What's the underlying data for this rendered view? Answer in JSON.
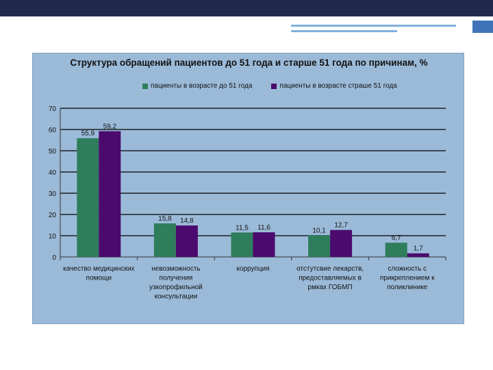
{
  "chart_data": {
    "type": "bar",
    "title": "Структура обращений пациентов до 51 года и старше 51 года по причинам, %",
    "categories": [
      [
        "качество медицинских",
        "помощи"
      ],
      [
        "невозможность",
        "получения",
        "узкопрофильной",
        "консультации"
      ],
      [
        "коррупция"
      ],
      [
        "отстутсвие лекарств,",
        "предоставляемых в",
        "рмках ГОБМП"
      ],
      [
        "сложность с",
        "прикреплением к",
        "поликлинике"
      ]
    ],
    "series": [
      {
        "name": "пациенты в возрасте до 51 года",
        "color": "#2e7d5b",
        "values": [
          55.9,
          15.8,
          11.5,
          10.1,
          6.7
        ],
        "labels": [
          "55,9",
          "15,8",
          "11,5",
          "10,1",
          "6,7"
        ]
      },
      {
        "name": "пациенты в возрасте страше 51 года",
        "color": "#4b0a6e",
        "values": [
          59.2,
          14.8,
          11.6,
          12.7,
          1.7
        ],
        "labels": [
          "59,2",
          "14,8",
          "11,6",
          "12,7",
          "1,7"
        ]
      }
    ],
    "ylim": [
      0,
      70
    ],
    "yticks": [
      "0",
      "10",
      "20",
      "30",
      "40",
      "50",
      "60",
      "70"
    ],
    "grid": true,
    "legend_position": "top"
  }
}
